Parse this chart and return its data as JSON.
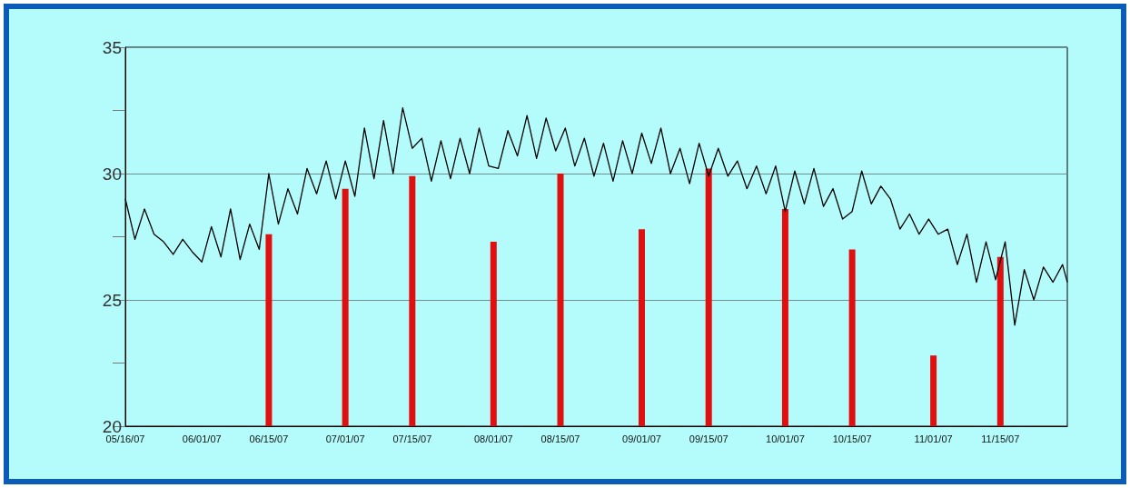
{
  "chart_data": {
    "type": "line",
    "xlim": [
      "2007-05-16",
      "2007-11-29"
    ],
    "xticks": [
      {
        "value": "2007-05-16",
        "label": "05/16/07"
      },
      {
        "value": "2007-06-01",
        "label": "06/01/07"
      },
      {
        "value": "2007-06-15",
        "label": "06/15/07"
      },
      {
        "value": "2007-07-01",
        "label": "07/01/07"
      },
      {
        "value": "2007-07-15",
        "label": "07/15/07"
      },
      {
        "value": "2007-08-01",
        "label": "08/01/07"
      },
      {
        "value": "2007-08-15",
        "label": "08/15/07"
      },
      {
        "value": "2007-09-01",
        "label": "09/01/07"
      },
      {
        "value": "2007-09-15",
        "label": "09/15/07"
      },
      {
        "value": "2007-10-01",
        "label": "10/01/07"
      },
      {
        "value": "2007-10-15",
        "label": "10/15/07"
      },
      {
        "value": "2007-11-01",
        "label": "11/01/07"
      },
      {
        "value": "2007-11-15",
        "label": "11/15/07"
      }
    ],
    "ylim": [
      20,
      35
    ],
    "yticks": [
      20,
      {
        "value": 22.5,
        "label": null
      },
      25,
      {
        "value": 27.5,
        "label": null
      },
      30,
      {
        "value": 32.5,
        "label": null
      },
      35
    ],
    "grid": "y",
    "marker": "none",
    "line_style": "solid",
    "series": [
      {
        "type": "bar",
        "color": "#e01010",
        "x": [
          "2007-06-15",
          "2007-07-01",
          "2007-07-15",
          "2007-08-01",
          "2007-08-15",
          "2007-09-01",
          "2007-09-15",
          "2007-10-01",
          "2007-10-15",
          "2007-11-01",
          "2007-11-15"
        ],
        "values": [
          27.6,
          29.4,
          29.9,
          27.3,
          30.0,
          27.8,
          30.2,
          28.6,
          27.0,
          22.8,
          26.7
        ]
      },
      {
        "color": "#000000",
        "x": [
          "2007-05-16",
          "2007-05-18",
          "2007-05-20",
          "2007-05-22",
          "2007-05-24",
          "2007-05-26",
          "2007-05-28",
          "2007-05-30",
          "2007-06-01",
          "2007-06-03",
          "2007-06-05",
          "2007-06-07",
          "2007-06-09",
          "2007-06-11",
          "2007-06-13",
          "2007-06-15",
          "2007-06-17",
          "2007-06-19",
          "2007-06-21",
          "2007-06-23",
          "2007-06-25",
          "2007-06-27",
          "2007-06-29",
          "2007-07-01",
          "2007-07-03",
          "2007-07-05",
          "2007-07-07",
          "2007-07-09",
          "2007-07-11",
          "2007-07-13",
          "2007-07-15",
          "2007-07-17",
          "2007-07-19",
          "2007-07-21",
          "2007-07-23",
          "2007-07-25",
          "2007-07-27",
          "2007-07-29",
          "2007-07-31",
          "2007-08-02",
          "2007-08-04",
          "2007-08-06",
          "2007-08-08",
          "2007-08-10",
          "2007-08-12",
          "2007-08-14",
          "2007-08-16",
          "2007-08-18",
          "2007-08-20",
          "2007-08-22",
          "2007-08-24",
          "2007-08-26",
          "2007-08-28",
          "2007-08-30",
          "2007-09-01",
          "2007-09-03",
          "2007-09-05",
          "2007-09-07",
          "2007-09-09",
          "2007-09-11",
          "2007-09-13",
          "2007-09-15",
          "2007-09-17",
          "2007-09-19",
          "2007-09-21",
          "2007-09-23",
          "2007-09-25",
          "2007-09-27",
          "2007-09-29",
          "2007-10-01",
          "2007-10-03",
          "2007-10-05",
          "2007-10-07",
          "2007-10-09",
          "2007-10-11",
          "2007-10-13",
          "2007-10-15",
          "2007-10-17",
          "2007-10-19",
          "2007-10-21",
          "2007-10-23",
          "2007-10-25",
          "2007-10-27",
          "2007-10-29",
          "2007-10-31",
          "2007-11-02",
          "2007-11-04",
          "2007-11-06",
          "2007-11-08",
          "2007-11-10",
          "2007-11-12",
          "2007-11-14",
          "2007-11-16",
          "2007-11-18",
          "2007-11-20",
          "2007-11-22",
          "2007-11-24",
          "2007-11-26",
          "2007-11-28",
          "2007-11-29"
        ],
        "values": [
          29.0,
          27.4,
          28.6,
          27.6,
          27.3,
          26.8,
          27.4,
          26.9,
          26.5,
          27.9,
          26.7,
          28.6,
          26.6,
          28.0,
          27.0,
          30.0,
          28.0,
          29.4,
          28.4,
          30.2,
          29.2,
          30.5,
          29.0,
          30.5,
          29.1,
          31.8,
          29.8,
          32.1,
          30.0,
          32.6,
          31.0,
          31.4,
          29.7,
          31.3,
          29.8,
          31.4,
          30.0,
          31.8,
          30.3,
          30.2,
          31.7,
          30.7,
          32.3,
          30.6,
          32.2,
          30.9,
          31.8,
          30.3,
          31.4,
          29.9,
          31.2,
          29.7,
          31.3,
          30.0,
          31.6,
          30.4,
          31.8,
          30.0,
          31.0,
          29.6,
          31.2,
          29.9,
          31.0,
          29.9,
          30.5,
          29.4,
          30.3,
          29.2,
          30.3,
          28.5,
          30.1,
          28.8,
          30.2,
          28.7,
          29.4,
          28.2,
          28.5,
          30.1,
          28.8,
          29.5,
          29.0,
          27.8,
          28.4,
          27.6,
          28.2,
          27.6,
          27.8,
          26.4,
          27.6,
          25.7,
          27.3,
          25.8,
          27.3,
          24.0,
          26.2,
          25.0,
          26.3,
          25.7,
          26.4,
          25.7
        ]
      }
    ]
  }
}
